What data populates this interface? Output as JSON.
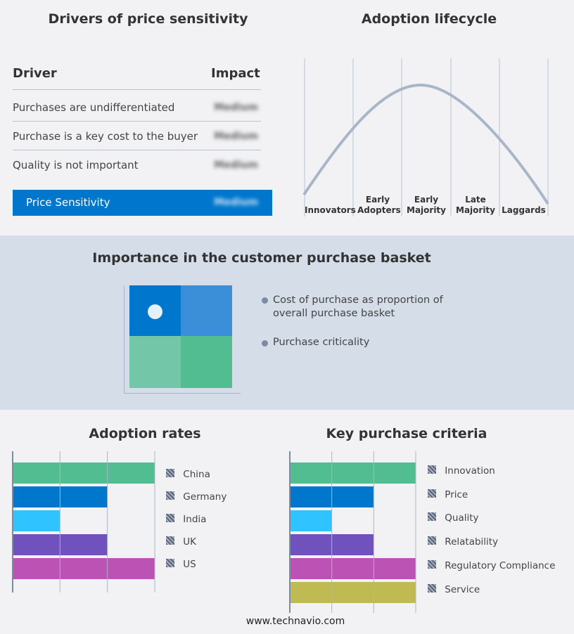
{
  "drivers": {
    "title": "Drivers of price sensitivity",
    "col_driver": "Driver",
    "col_impact": "Impact",
    "rows": [
      {
        "driver": "Purchases are undifferentiated",
        "impact": "Medium"
      },
      {
        "driver": "Purchase is a key cost to the buyer",
        "impact": "Medium"
      },
      {
        "driver": "Quality is not important",
        "impact": "Medium"
      }
    ],
    "summary": {
      "label": "Price Sensitivity",
      "impact": "Medium"
    },
    "accent": "#0077cc"
  },
  "lifecycle": {
    "title": "Adoption lifecycle",
    "stages": [
      "Innovators",
      "Early Adopters",
      "Early Majority",
      "Late Majority",
      "Laggards"
    ]
  },
  "basket": {
    "title": "Importance in the customer purchase basket",
    "legend": [
      "Cost of purchase as proportion of overall purchase basket",
      "Purchase criticality"
    ],
    "quadrant_colors": [
      "#0077cc",
      "#3a8fd8",
      "#74c6a8",
      "#52bd90"
    ]
  },
  "chart_data": [
    {
      "type": "bar",
      "title": "Adoption rates",
      "categories": [
        "China",
        "Germany",
        "India",
        "UK",
        "US"
      ],
      "values": [
        3,
        2,
        1,
        2,
        3
      ],
      "xlim": [
        0,
        3
      ],
      "grid": true,
      "legend": "right",
      "colors": [
        "#52bd90",
        "#0077cc",
        "#2fc4ff",
        "#6f52bd",
        "#bd52b5"
      ]
    },
    {
      "type": "bar",
      "title": "Key purchase criteria",
      "categories": [
        "Innovation",
        "Price",
        "Quality",
        "Relatability",
        "Regulatory Compliance",
        "Service"
      ],
      "values": [
        3,
        2,
        1,
        2,
        3,
        3
      ],
      "xlim": [
        0,
        3
      ],
      "grid": true,
      "legend": "right",
      "colors": [
        "#52bd90",
        "#0077cc",
        "#2fc4ff",
        "#6f52bd",
        "#bd52b5",
        "#bfbb52"
      ]
    }
  ],
  "footer": "www.technavio.com"
}
